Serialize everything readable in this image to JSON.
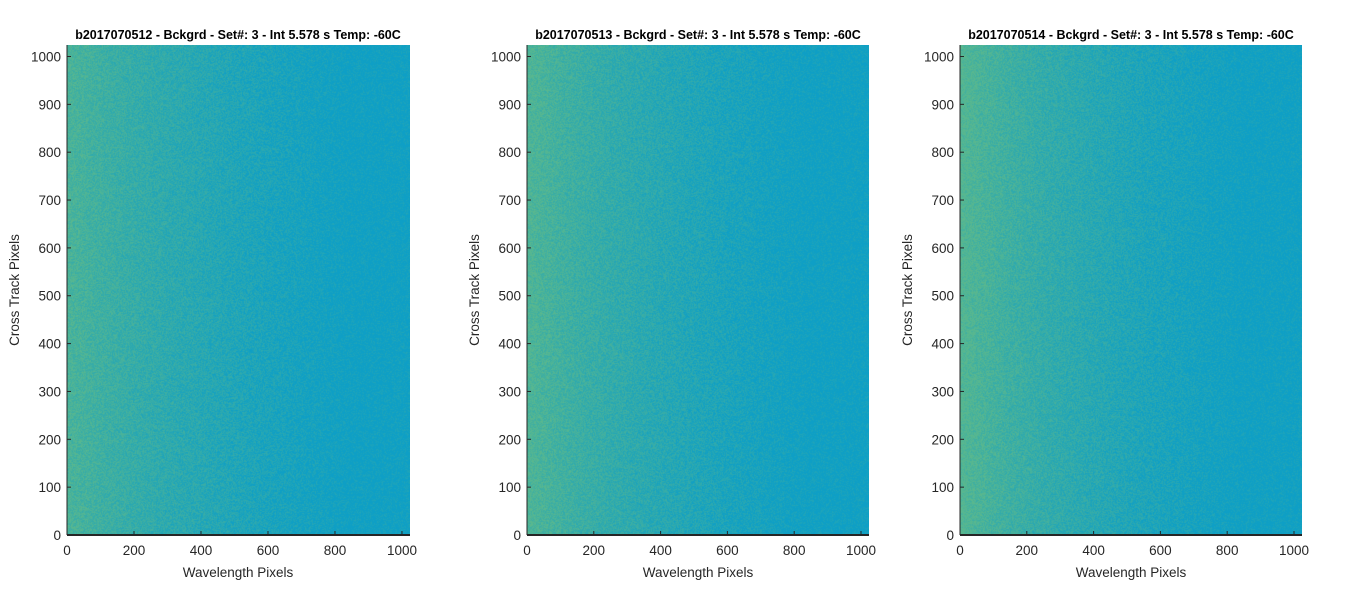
{
  "chart_data": [
    {
      "type": "heatmap",
      "title": "b2017070512 - Bckgrd - Set#: 3 - Int 5.578 s Temp: -60C",
      "xlabel": "Wavelength Pixels",
      "ylabel": "Cross Track Pixels",
      "xlim": [
        0,
        1024
      ],
      "ylim": [
        0,
        1024
      ],
      "xticks": [
        0,
        200,
        400,
        600,
        800,
        1000
      ],
      "yticks": [
        0,
        100,
        200,
        300,
        400,
        500,
        600,
        700,
        800,
        900,
        1000
      ],
      "xtick_labels": [
        "0",
        "200",
        "400",
        "600",
        "800",
        "1000"
      ],
      "ytick_labels": [
        "0",
        "100",
        "200",
        "300",
        "400",
        "500",
        "600",
        "700",
        "800",
        "900",
        "1000"
      ],
      "colormap": "parula",
      "color_low_x": "#0e9fc6",
      "color_high_x": "#5ab88e",
      "left_edge_strength": 0.55,
      "grid": false
    },
    {
      "type": "heatmap",
      "title": "b2017070513 - Bckgrd - Set#: 3 - Int 5.578 s Temp: -60C",
      "xlabel": "Wavelength Pixels",
      "ylabel": "Cross Track Pixels",
      "xlim": [
        0,
        1024
      ],
      "ylim": [
        0,
        1024
      ],
      "xticks": [
        0,
        200,
        400,
        600,
        800,
        1000
      ],
      "yticks": [
        0,
        100,
        200,
        300,
        400,
        500,
        600,
        700,
        800,
        900,
        1000
      ],
      "xtick_labels": [
        "0",
        "200",
        "400",
        "600",
        "800",
        "1000"
      ],
      "ytick_labels": [
        "0",
        "100",
        "200",
        "300",
        "400",
        "500",
        "600",
        "700",
        "800",
        "900",
        "1000"
      ],
      "colormap": "parula",
      "color_low_x": "#0e9fc6",
      "color_high_x": "#5ab88e",
      "left_edge_strength": 0.75,
      "grid": false
    },
    {
      "type": "heatmap",
      "title": "b2017070514 - Bckgrd - Set#: 3 - Int 5.578 s Temp: -60C",
      "xlabel": "Wavelength Pixels",
      "ylabel": "Cross Track Pixels",
      "xlim": [
        0,
        1024
      ],
      "ylim": [
        0,
        1024
      ],
      "xticks": [
        0,
        200,
        400,
        600,
        800,
        1000
      ],
      "yticks": [
        0,
        100,
        200,
        300,
        400,
        500,
        600,
        700,
        800,
        900,
        1000
      ],
      "xtick_labels": [
        "0",
        "200",
        "400",
        "600",
        "800",
        "1000"
      ],
      "ytick_labels": [
        "0",
        "100",
        "200",
        "300",
        "400",
        "500",
        "600",
        "700",
        "800",
        "900",
        "1000"
      ],
      "colormap": "parula",
      "color_low_x": "#0e9fc6",
      "color_high_x": "#5ab88e",
      "left_edge_strength": 0.95,
      "grid": false
    }
  ]
}
